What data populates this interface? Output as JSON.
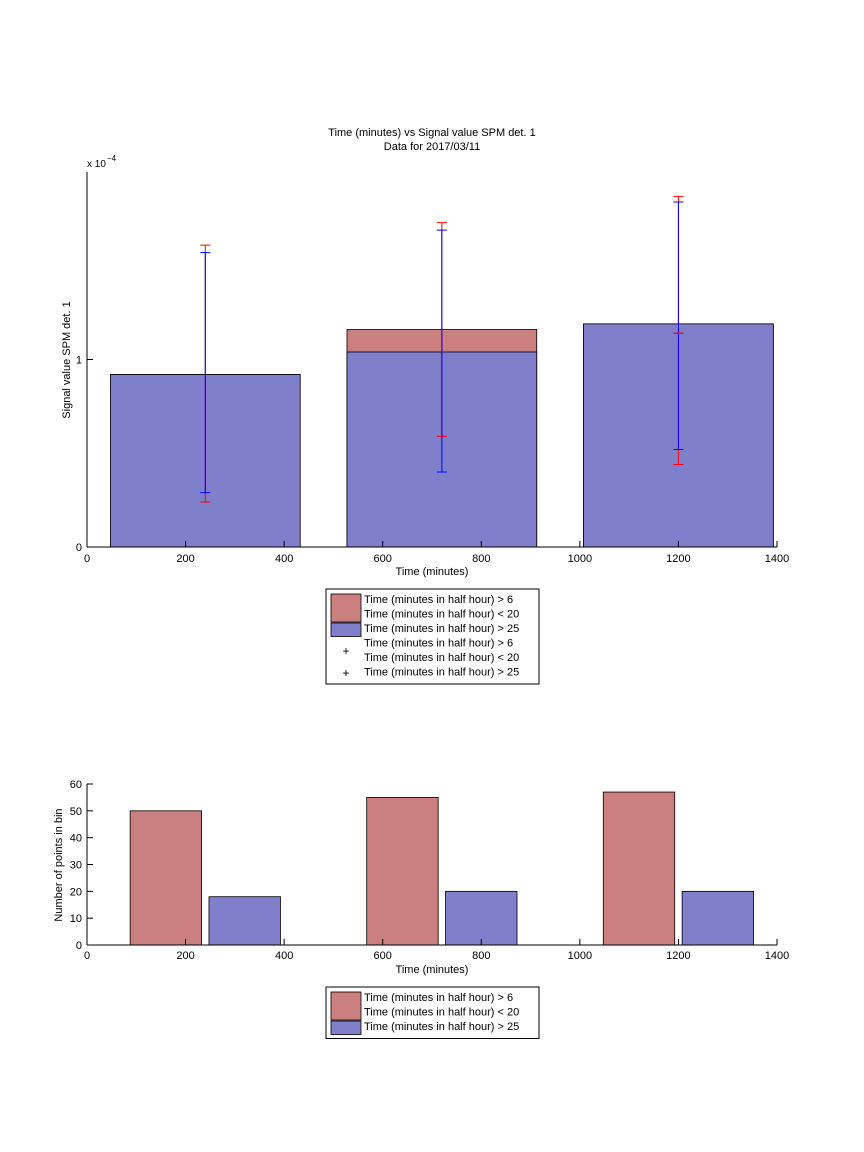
{
  "chart_data": [
    {
      "type": "bar",
      "title": "Time (minutes) vs Signal value SPM det. 1",
      "subtitle": "Data for 2017/03/11",
      "xlabel": "Time (minutes)",
      "ylabel": "Signal value SPM det. 1",
      "y_exponent_label": "x 10",
      "y_exponent_power": "−4",
      "xlim": [
        0,
        1400
      ],
      "ylim": [
        0,
        2.0
      ],
      "y_multiplier": 0.0001,
      "x_ticks": [
        "0",
        "200",
        "400",
        "600",
        "800",
        "1000",
        "1200",
        "1400"
      ],
      "y_ticks": [
        "0",
        "1"
      ],
      "grid": false,
      "legend_position": "below",
      "bars": [
        {
          "center": 240,
          "width": 385,
          "value_red": 0.92,
          "value_blue": 0.92
        },
        {
          "center": 720,
          "width": 385,
          "value_red": 1.16,
          "value_blue": 1.04
        },
        {
          "center": 1200,
          "width": 385,
          "value_red": 1.19,
          "value_blue": 1.19
        }
      ],
      "errorbars": [
        {
          "series": "red",
          "x": 240,
          "low": 0.24,
          "high": 1.61
        },
        {
          "series": "blue",
          "x": 240,
          "low": 0.29,
          "high": 1.57
        },
        {
          "series": "red",
          "x": 720,
          "low": 0.59,
          "high": 1.73
        },
        {
          "series": "blue",
          "x": 720,
          "low": 0.4,
          "high": 1.69
        },
        {
          "series": "red",
          "x": 1200,
          "low": 0.44,
          "high": 1.87
        },
        {
          "series": "blue",
          "x": 1200,
          "low": 0.52,
          "high": 1.84
        },
        {
          "series": "red",
          "x": 1200,
          "low": 1.14,
          "high": 1.14
        }
      ],
      "legend": [
        {
          "kind": "bar",
          "color": "#cc7f7f",
          "lines": [
            "Time (minutes in half hour) > 6",
            "Time (minutes in half hour) < 20"
          ]
        },
        {
          "kind": "bar",
          "color": "#7f7fcc",
          "lines": [
            "Time (minutes in half hour) > 25"
          ]
        },
        {
          "kind": "marker",
          "color": "#ff0000",
          "lines": [
            "Time (minutes in half hour) > 6",
            "Time (minutes in half hour) < 20"
          ]
        },
        {
          "kind": "marker",
          "color": "#0000ff",
          "lines": [
            "Time (minutes in half hour) > 25"
          ]
        }
      ]
    },
    {
      "type": "bar",
      "xlabel": "Time (minutes)",
      "ylabel": "Number of points in bin",
      "xlim": [
        0,
        1400
      ],
      "ylim": [
        0,
        60
      ],
      "x_ticks": [
        "0",
        "200",
        "400",
        "600",
        "800",
        "1000",
        "1200",
        "1400"
      ],
      "y_ticks": [
        "0",
        "10",
        "20",
        "30",
        "40",
        "50",
        "60"
      ],
      "grid": false,
      "legend_position": "below",
      "series": [
        {
          "color": "#cc7f7f",
          "x": [
            160,
            640,
            1120
          ],
          "values": [
            50,
            55,
            57
          ]
        },
        {
          "color": "#7f7fcc",
          "x": [
            320,
            800,
            1280
          ],
          "values": [
            18,
            20,
            20
          ]
        }
      ],
      "bar_width": 145,
      "legend": [
        {
          "kind": "bar",
          "color": "#cc7f7f",
          "lines": [
            "Time (minutes in half hour) > 6",
            "Time (minutes in half hour) < 20"
          ]
        },
        {
          "kind": "bar",
          "color": "#7f7fcc",
          "lines": [
            "Time (minutes in half hour) > 25"
          ]
        }
      ]
    }
  ],
  "colors": {
    "red_bar": "#cc7f7f",
    "blue_bar": "#7f7fcc",
    "red_err": "#ff0000",
    "blue_err": "#0000ff"
  }
}
